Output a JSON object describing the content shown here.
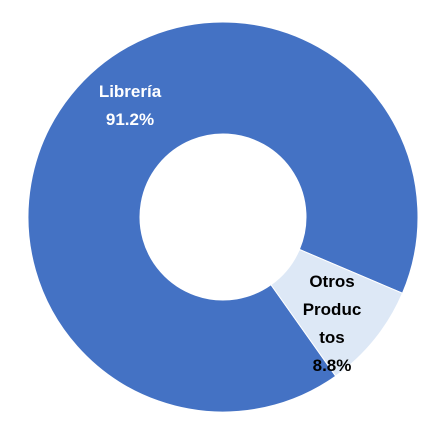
{
  "chart_data": {
    "type": "donut",
    "categories": [
      "Librería",
      "Otros Productos"
    ],
    "values": [
      91.2,
      8.8
    ],
    "value_labels": [
      "91.2%",
      "8.8%"
    ],
    "colors": [
      "#4472c4",
      "#dde8f6"
    ]
  }
}
